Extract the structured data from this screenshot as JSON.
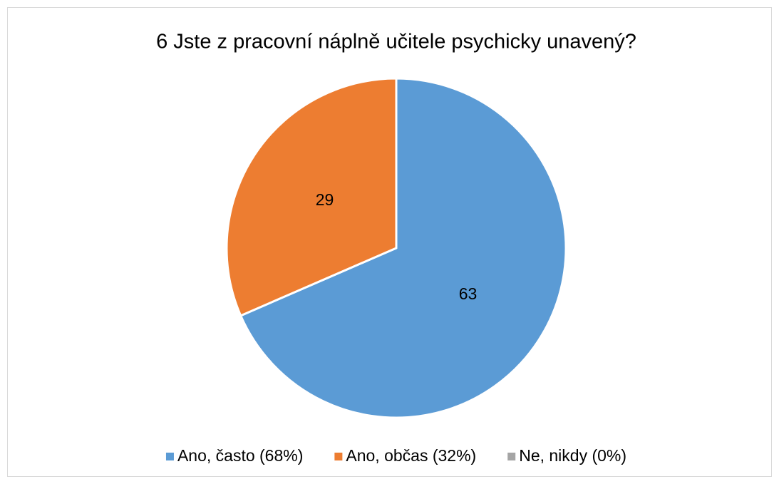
{
  "chart_data": {
    "type": "pie",
    "title": "6 Jste z pracovní náplně učitele psychicky unavený?",
    "categories": [
      "Ano, často (68%)",
      "Ano, občas (32%)",
      "Ne, nikdy (0%)"
    ],
    "values": [
      63,
      29,
      0
    ],
    "colors": [
      "#5b9bd5",
      "#ed7d31",
      "#a5a5a5"
    ],
    "legend": "bottom"
  }
}
